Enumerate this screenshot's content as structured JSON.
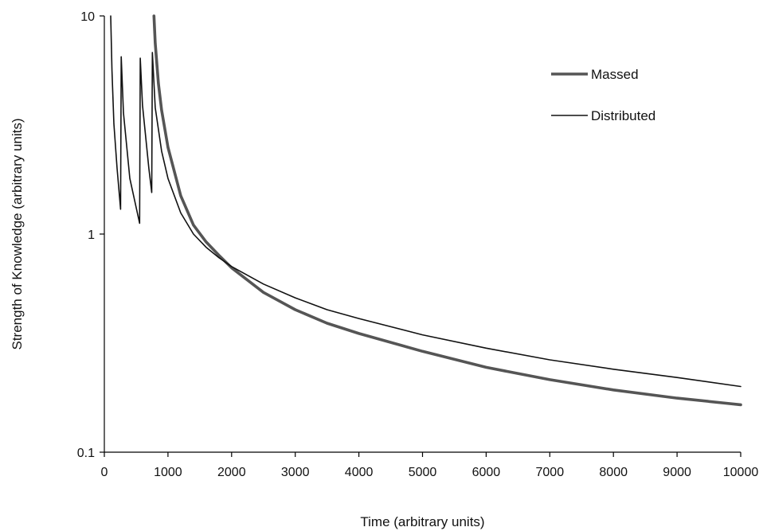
{
  "chart_data": {
    "type": "line",
    "title": "",
    "xlabel": "Time (arbitrary units)",
    "ylabel": "Strength of Knowledge (arbitrary units)",
    "xlim": [
      0,
      10000
    ],
    "ylim": [
      0.1,
      10
    ],
    "y_scale": "log",
    "grid": false,
    "legend_position": "top-right",
    "x_ticks": [
      "0",
      "1000",
      "2000",
      "3000",
      "4000",
      "5000",
      "6000",
      "7000",
      "8000",
      "9000",
      "10000"
    ],
    "x_tick_values": [
      0,
      1000,
      2000,
      3000,
      4000,
      5000,
      6000,
      7000,
      8000,
      9000,
      10000
    ],
    "y_ticks": [
      "0.1",
      "1",
      "10"
    ],
    "y_tick_values": [
      0.1,
      1,
      10
    ],
    "series": [
      {
        "name": "Massed",
        "color": "#555555",
        "style": "thick",
        "x": [
          780,
          800,
          850,
          900,
          1000,
          1200,
          1400,
          1600,
          1800,
          2000,
          2500,
          3000,
          3500,
          4000,
          5000,
          6000,
          7000,
          8000,
          9000,
          10000
        ],
        "y": [
          10,
          7.5,
          4.9,
          3.7,
          2.5,
          1.5,
          1.1,
          0.92,
          0.8,
          0.7,
          0.54,
          0.45,
          0.39,
          0.35,
          0.29,
          0.245,
          0.215,
          0.193,
          0.177,
          0.165
        ]
      },
      {
        "name": "Distributed",
        "color": "#111111",
        "style": "thin",
        "x": [
          100,
          120,
          150,
          200,
          255,
          265,
          300,
          400,
          555,
          565,
          600,
          700,
          745,
          755,
          800,
          900,
          1000,
          1200,
          1400,
          1600,
          1800,
          2000,
          2500,
          3000,
          3500,
          4000,
          5000,
          6000,
          7000,
          8000,
          9000,
          10000
        ],
        "y": [
          10,
          5.6,
          3.2,
          2.0,
          1.3,
          6.5,
          3.6,
          1.8,
          1.12,
          6.4,
          3.9,
          2.0,
          1.55,
          6.8,
          3.8,
          2.4,
          1.8,
          1.25,
          1.0,
          0.87,
          0.78,
          0.71,
          0.59,
          0.51,
          0.45,
          0.41,
          0.345,
          0.3,
          0.265,
          0.24,
          0.22,
          0.2
        ]
      }
    ]
  }
}
